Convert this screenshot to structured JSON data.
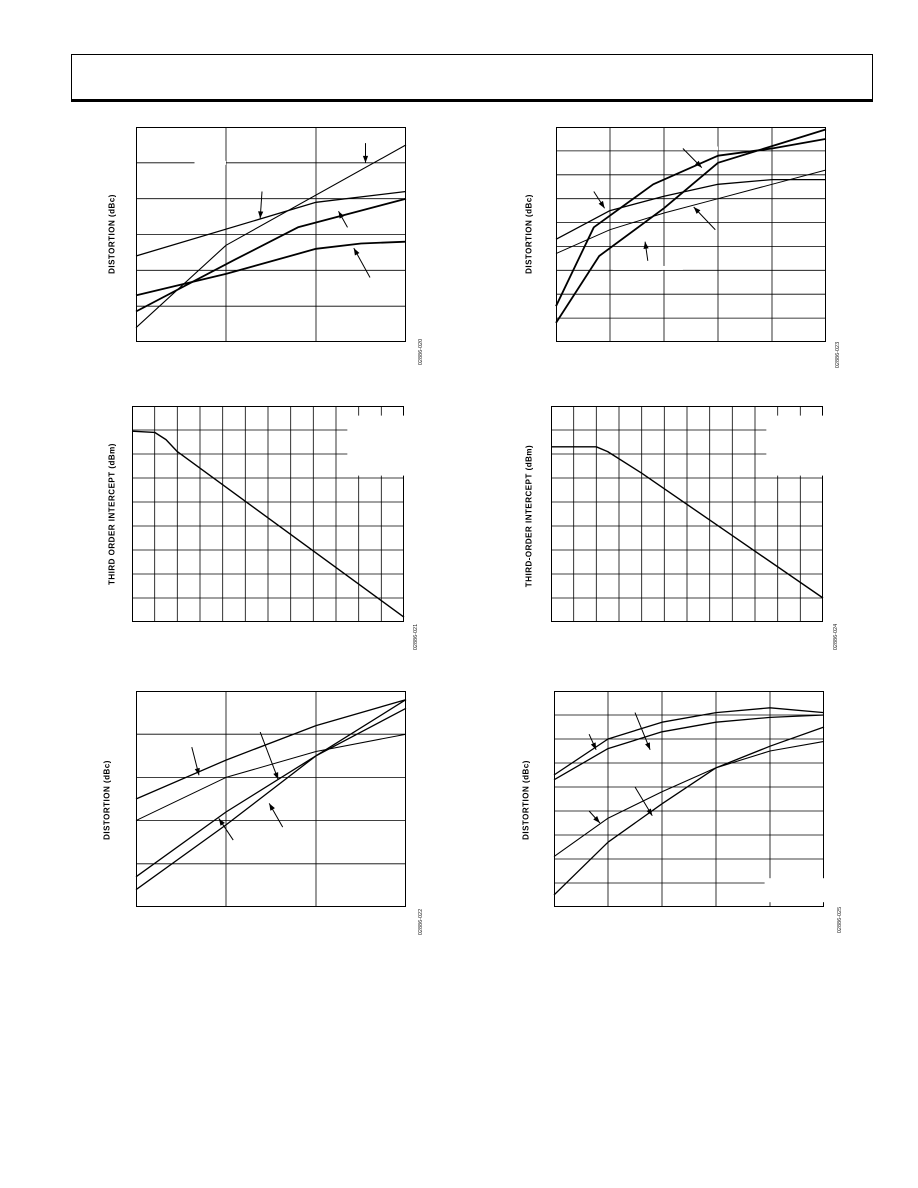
{
  "colors": {
    "ink": "#000000",
    "grid": "#000000",
    "background": "#ffffff"
  },
  "charts": [
    {
      "id": "c1",
      "ylabel": "DISTORTION (dBc)",
      "figure_id": "02886-020",
      "grid": {
        "cols": 3,
        "rows": 6
      },
      "chart_data": {
        "type": "line",
        "xlim": [
          0,
          3
        ],
        "ylim": [
          0,
          6
        ],
        "grid": true,
        "series": [
          {
            "stroke": 1.1,
            "points": [
              [
                0,
                0.4
              ],
              [
                1,
                2.7
              ],
              [
                3,
                5.5
              ]
            ]
          },
          {
            "stroke": 1.8,
            "points": [
              [
                0,
                0.85
              ],
              [
                1.1,
                2.3
              ],
              [
                1.8,
                3.2
              ],
              [
                3,
                4.0
              ]
            ]
          },
          {
            "stroke": 1.3,
            "points": [
              [
                0,
                2.4
              ],
              [
                2,
                3.9
              ],
              [
                3,
                4.2
              ]
            ]
          },
          {
            "stroke": 1.8,
            "points": [
              [
                0,
                1.3
              ],
              [
                1,
                1.9
              ],
              [
                2,
                2.6
              ],
              [
                2.5,
                2.75
              ],
              [
                3,
                2.8
              ]
            ]
          }
        ],
        "arrows": [
          {
            "from": [
              2.55,
              5.55
            ],
            "to": [
              2.55,
              5.0
            ]
          },
          {
            "from": [
              1.4,
              4.2
            ],
            "to": [
              1.38,
              3.45
            ]
          },
          {
            "from": [
              2.35,
              3.2
            ],
            "to": [
              2.25,
              3.65
            ]
          },
          {
            "from": [
              2.6,
              1.8
            ],
            "to": [
              2.42,
              2.62
            ]
          }
        ],
        "masks": [
          {
            "x": [
              0.65,
              1.0
            ],
            "y": 5.0
          }
        ]
      }
    },
    {
      "id": "c2",
      "ylabel": "DISTORTION (dBc)",
      "figure_id": "02886-023",
      "grid": {
        "cols": 5,
        "rows": 9
      },
      "chart_data": {
        "type": "line",
        "xlim": [
          0,
          5
        ],
        "ylim": [
          0,
          9
        ],
        "grid": true,
        "series": [
          {
            "stroke": 1.8,
            "points": [
              [
                0,
                1.5
              ],
              [
                0.7,
                4.8
              ],
              [
                1.8,
                6.6
              ],
              [
                3,
                7.8
              ],
              [
                4,
                8.1
              ],
              [
                5,
                8.5
              ]
            ]
          },
          {
            "stroke": 1.8,
            "points": [
              [
                0,
                0.8
              ],
              [
                0.8,
                3.6
              ],
              [
                2,
                5.6
              ],
              [
                3,
                7.5
              ],
              [
                4,
                8.2
              ],
              [
                5,
                8.9
              ]
            ]
          },
          {
            "stroke": 1.3,
            "points": [
              [
                0,
                4.3
              ],
              [
                1,
                5.5
              ],
              [
                2,
                6.1
              ],
              [
                3,
                6.6
              ],
              [
                4,
                6.8
              ],
              [
                5,
                6.8
              ]
            ]
          },
          {
            "stroke": 1.0,
            "points": [
              [
                0,
                3.7
              ],
              [
                1,
                4.7
              ],
              [
                2,
                5.4
              ],
              [
                3,
                6.0
              ],
              [
                4,
                6.6
              ],
              [
                5,
                7.2
              ]
            ]
          }
        ],
        "arrows": [
          {
            "from": [
              2.35,
              8.1
            ],
            "to": [
              2.7,
              7.3
            ]
          },
          {
            "from": [
              0.7,
              6.3
            ],
            "to": [
              0.9,
              5.6
            ]
          },
          {
            "from": [
              2.95,
              4.7
            ],
            "to": [
              2.55,
              5.65
            ]
          },
          {
            "from": [
              1.7,
              3.4
            ],
            "to": [
              1.65,
              4.2
            ]
          }
        ],
        "masks": [
          {
            "x": [
              1.05,
              1.7
            ],
            "y": 8.1
          },
          {
            "x": [
              2.8,
              3.0
            ],
            "y": 8.1
          },
          {
            "x": [
              1.05,
              2.35
            ],
            "y": 3.1
          }
        ]
      }
    },
    {
      "id": "c3",
      "ylabel": "THIRD ORDER INTERCEPT (dBm)",
      "figure_id": "02886-021",
      "grid": {
        "cols": 12,
        "rows": 9
      },
      "chart_data": {
        "type": "line",
        "xlim": [
          0,
          12
        ],
        "ylim": [
          0,
          9
        ],
        "grid": true,
        "series": [
          {
            "stroke": 1.4,
            "points": [
              [
                0,
                7.95
              ],
              [
                1,
                7.9
              ],
              [
                1.5,
                7.6
              ],
              [
                2,
                7.1
              ],
              [
                12,
                0.2
              ]
            ]
          }
        ],
        "arrows": [],
        "masks": [
          {
            "x": [
              9.5,
              12
            ],
            "y_range": [
              6.1,
              8.6
            ]
          }
        ]
      }
    },
    {
      "id": "c4",
      "ylabel": "THIRD-ORDER INTERCEPT (dBm)",
      "figure_id": "02886-024",
      "grid": {
        "cols": 12,
        "rows": 9
      },
      "chart_data": {
        "type": "line",
        "xlim": [
          0,
          12
        ],
        "ylim": [
          0,
          9
        ],
        "grid": true,
        "series": [
          {
            "stroke": 1.4,
            "points": [
              [
                0,
                7.3
              ],
              [
                2,
                7.3
              ],
              [
                2.5,
                7.1
              ],
              [
                4,
                6.2
              ],
              [
                8,
                3.6
              ],
              [
                12,
                1.0
              ]
            ]
          }
        ],
        "arrows": [],
        "masks": [
          {
            "x": [
              9.5,
              12
            ],
            "y_range": [
              6.1,
              8.6
            ]
          }
        ]
      }
    },
    {
      "id": "c5",
      "ylabel": "DISTORTION (dBc)",
      "figure_id": "02886-022",
      "grid": {
        "cols": 3,
        "rows": 5
      },
      "chart_data": {
        "type": "line",
        "xlim": [
          0,
          3
        ],
        "ylim": [
          0,
          5
        ],
        "grid": true,
        "series": [
          {
            "stroke": 1.3,
            "points": [
              [
                0,
                2.5
              ],
              [
                1,
                3.4
              ],
              [
                2,
                4.2
              ],
              [
                3,
                4.8
              ]
            ]
          },
          {
            "stroke": 1.0,
            "points": [
              [
                0,
                2.0
              ],
              [
                1,
                3.0
              ],
              [
                2,
                3.6
              ],
              [
                3,
                4.0
              ]
            ]
          },
          {
            "stroke": 1.3,
            "points": [
              [
                0,
                0.7
              ],
              [
                1,
                2.2
              ],
              [
                2,
                3.5
              ],
              [
                3,
                4.6
              ]
            ]
          },
          {
            "stroke": 1.3,
            "points": [
              [
                0,
                0.4
              ],
              [
                1,
                1.9
              ],
              [
                2,
                3.5
              ],
              [
                3,
                4.8
              ]
            ]
          }
        ],
        "arrows": [
          {
            "from": [
              0.62,
              3.7
            ],
            "to": [
              0.7,
              3.05
            ]
          },
          {
            "from": [
              1.38,
              4.05
            ],
            "to": [
              1.58,
              2.95
            ]
          },
          {
            "from": [
              1.08,
              1.55
            ],
            "to": [
              0.92,
              2.05
            ]
          },
          {
            "from": [
              1.63,
              1.85
            ],
            "to": [
              1.48,
              2.4
            ]
          }
        ],
        "masks": []
      }
    },
    {
      "id": "c6",
      "ylabel": "DISTORTION (dBc)",
      "figure_id": "02886-025",
      "grid": {
        "cols": 5,
        "rows": 9
      },
      "chart_data": {
        "type": "line",
        "xlim": [
          0,
          5
        ],
        "ylim": [
          0,
          9
        ],
        "grid": true,
        "series": [
          {
            "stroke": 1.3,
            "points": [
              [
                0,
                5.5
              ],
              [
                1,
                7.0
              ],
              [
                2,
                7.7
              ],
              [
                3,
                8.1
              ],
              [
                4,
                8.3
              ],
              [
                5,
                8.1
              ]
            ]
          },
          {
            "stroke": 1.3,
            "points": [
              [
                0,
                5.3
              ],
              [
                1,
                6.6
              ],
              [
                2,
                7.3
              ],
              [
                3,
                7.7
              ],
              [
                4,
                7.9
              ],
              [
                5,
                8.0
              ]
            ]
          },
          {
            "stroke": 1.1,
            "points": [
              [
                0,
                2.1
              ],
              [
                1,
                3.7
              ],
              [
                2,
                4.8
              ],
              [
                3,
                5.8
              ],
              [
                4,
                6.5
              ],
              [
                5,
                6.9
              ]
            ]
          },
          {
            "stroke": 1.3,
            "points": [
              [
                0,
                0.5
              ],
              [
                1,
                2.7
              ],
              [
                2,
                4.3
              ],
              [
                3,
                5.8
              ],
              [
                4,
                6.7
              ],
              [
                5,
                7.5
              ]
            ]
          }
        ],
        "arrows": [
          {
            "from": [
              1.5,
              8.1
            ],
            "to": [
              1.78,
              6.55
            ]
          },
          {
            "from": [
              0.65,
              7.2
            ],
            "to": [
              0.78,
              6.55
            ]
          },
          {
            "from": [
              0.65,
              4.0
            ],
            "to": [
              0.85,
              3.5
            ]
          },
          {
            "from": [
              1.5,
              5.0
            ],
            "to": [
              1.82,
              3.8
            ]
          }
        ],
        "masks": [
          {
            "x": [
              3.9,
              5
            ],
            "y_range": [
              0.2,
              1.2
            ]
          }
        ]
      }
    }
  ]
}
